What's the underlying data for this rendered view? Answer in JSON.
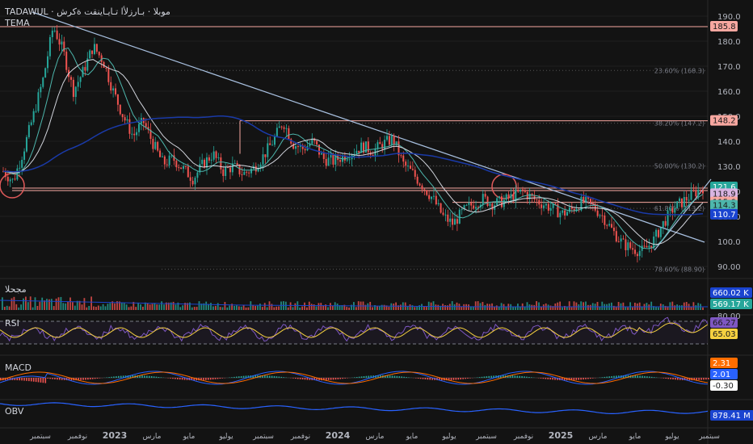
{
  "header": {
    "symbol_line": "TADAWUL · موبلا · بـارزلأا تـايـاينقت ةكرش",
    "indicator_name": "TEMA"
  },
  "price_axis": {
    "ticks": [
      "190.0",
      "180.0",
      "170.0",
      "160.0",
      "150.0",
      "140.0",
      "130.0",
      "120.0",
      "110.0",
      "100.0",
      "90.00"
    ],
    "labels": [
      {
        "text": "185.8",
        "value": 185.8,
        "bg": "#f7a7a0",
        "fg": "#1a1a1a"
      },
      {
        "text": "148.2",
        "value": 148.2,
        "bg": "#f7a7a0",
        "fg": "#1a1a1a"
      },
      {
        "text": "121.6",
        "value": 121.6,
        "bg": "#26a69a",
        "fg": "#ffffff"
      },
      {
        "text": "118.9",
        "value": 118.9,
        "bg": "#d8b4e2",
        "fg": "#1a1a1a"
      },
      {
        "text": "115.6",
        "value": 115.6,
        "bg": "#f7a7a0",
        "fg": "#1a1a1a"
      },
      {
        "text": "114.3",
        "value": 114.3,
        "bg": "#4db6ac",
        "fg": "#1a1a1a"
      },
      {
        "text": "110.7",
        "value": 110.7,
        "bg": "#1a44d0",
        "fg": "#ffffff"
      }
    ]
  },
  "fib_levels": [
    {
      "text": "23.60% (168.3)",
      "value": 168.3
    },
    {
      "text": "38.20% (147.2)",
      "value": 147.2
    },
    {
      "text": "50.00% (130.2)",
      "value": 130.2
    },
    {
      "text": "61.80% (113.2)",
      "value": 113.2
    },
    {
      "text": "78.60% (88.90)",
      "value": 88.9
    }
  ],
  "volume_panel": {
    "label": "مجحلا",
    "values": [
      {
        "text": "660.02 K",
        "bg": "#1a44d0"
      },
      {
        "text": "569.17 K",
        "bg": "#26a69a"
      }
    ]
  },
  "rsi_panel": {
    "label": "RSI",
    "ticks": [
      "80.00"
    ],
    "values": [
      {
        "text": "66.27",
        "bg": "#7e57c2"
      },
      {
        "text": "65.03",
        "bg": "#f5d040"
      }
    ]
  },
  "macd_panel": {
    "label": "MACD",
    "values": [
      {
        "text": "2.31",
        "bg": "#ff6d00"
      },
      {
        "text": "2.01",
        "bg": "#2962ff"
      },
      {
        "text": "-0.30",
        "bg": "#ffffff"
      }
    ]
  },
  "obv_panel": {
    "label": "OBV",
    "values": [
      {
        "text": "878.41 M",
        "bg": "#1a44d0"
      }
    ]
  },
  "time_axis": [
    "سبتمبر",
    "نوفمبر",
    "2023",
    "مارس",
    "مايو",
    "يوليو",
    "سبتمبر",
    "نوفمبر",
    "2024",
    "مارس",
    "مايو",
    "يوليو",
    "سبتمبر",
    "نوفمبر",
    "2025",
    "مارس",
    "مايو",
    "يوليو",
    "سبتمبر"
  ],
  "chart_data": {
    "type": "line",
    "title": "",
    "price_series": [
      {
        "t": 0,
        "v": 128
      },
      {
        "t": 1,
        "v": 124
      },
      {
        "t": 2,
        "v": 136
      },
      {
        "t": 3,
        "v": 150
      },
      {
        "t": 4,
        "v": 165
      },
      {
        "t": 5,
        "v": 186
      },
      {
        "t": 6,
        "v": 176
      },
      {
        "t": 7,
        "v": 160
      },
      {
        "t": 8,
        "v": 168
      },
      {
        "t": 9,
        "v": 178
      },
      {
        "t": 10,
        "v": 172
      },
      {
        "t": 11,
        "v": 160
      },
      {
        "t": 12,
        "v": 150
      },
      {
        "t": 13,
        "v": 142
      },
      {
        "t": 14,
        "v": 148
      },
      {
        "t": 15,
        "v": 139
      },
      {
        "t": 16,
        "v": 131
      },
      {
        "t": 17,
        "v": 133
      },
      {
        "t": 18,
        "v": 129
      },
      {
        "t": 19,
        "v": 125
      },
      {
        "t": 20,
        "v": 131
      },
      {
        "t": 21,
        "v": 135
      },
      {
        "t": 22,
        "v": 128
      },
      {
        "t": 23,
        "v": 130
      },
      {
        "t": 24,
        "v": 127
      },
      {
        "t": 25,
        "v": 129
      },
      {
        "t": 26,
        "v": 134
      },
      {
        "t": 27,
        "v": 140
      },
      {
        "t": 28,
        "v": 148
      },
      {
        "t": 29,
        "v": 139
      },
      {
        "t": 30,
        "v": 137
      },
      {
        "t": 31,
        "v": 140
      },
      {
        "t": 32,
        "v": 133
      },
      {
        "t": 33,
        "v": 132
      },
      {
        "t": 34,
        "v": 134
      },
      {
        "t": 35,
        "v": 136
      },
      {
        "t": 36,
        "v": 138
      },
      {
        "t": 37,
        "v": 136
      },
      {
        "t": 38,
        "v": 139
      },
      {
        "t": 39,
        "v": 141
      },
      {
        "t": 40,
        "v": 131
      },
      {
        "t": 41,
        "v": 127
      },
      {
        "t": 42,
        "v": 122
      },
      {
        "t": 43,
        "v": 117
      },
      {
        "t": 44,
        "v": 110
      },
      {
        "t": 45,
        "v": 107
      },
      {
        "t": 46,
        "v": 112
      },
      {
        "t": 47,
        "v": 115
      },
      {
        "t": 48,
        "v": 117
      },
      {
        "t": 49,
        "v": 115
      },
      {
        "t": 50,
        "v": 116
      },
      {
        "t": 51,
        "v": 118
      },
      {
        "t": 52,
        "v": 120
      },
      {
        "t": 53,
        "v": 117
      },
      {
        "t": 54,
        "v": 115
      },
      {
        "t": 55,
        "v": 113
      },
      {
        "t": 56,
        "v": 111
      },
      {
        "t": 57,
        "v": 113
      },
      {
        "t": 58,
        "v": 116
      },
      {
        "t": 59,
        "v": 114
      },
      {
        "t": 60,
        "v": 110
      },
      {
        "t": 61,
        "v": 104
      },
      {
        "t": 62,
        "v": 99
      },
      {
        "t": 63,
        "v": 97
      },
      {
        "t": 64,
        "v": 96
      },
      {
        "t": 65,
        "v": 100
      },
      {
        "t": 66,
        "v": 107
      },
      {
        "t": 67,
        "v": 113
      },
      {
        "t": 68,
        "v": 116
      },
      {
        "t": 69,
        "v": 119
      },
      {
        "t": 70,
        "v": 121.6
      }
    ],
    "ylim": [
      85,
      193
    ]
  }
}
